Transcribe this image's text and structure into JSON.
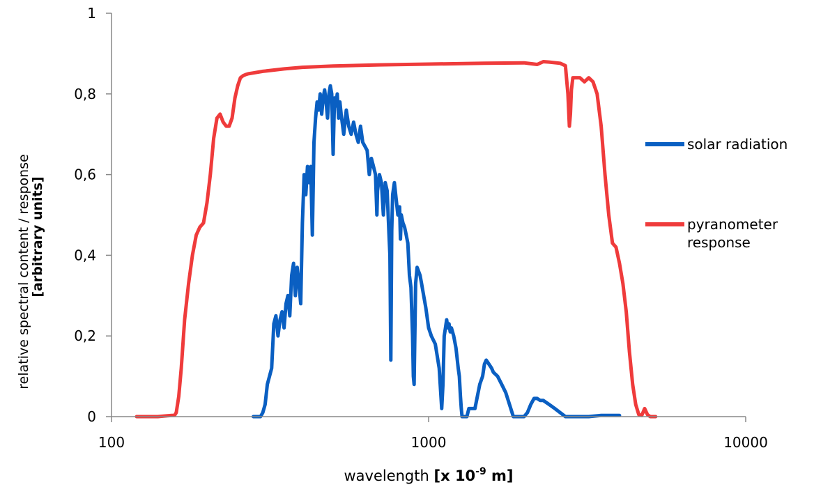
{
  "chart_data": {
    "type": "line",
    "x_scale": "log",
    "xlim": [
      100,
      10000
    ],
    "ylim": [
      0,
      1
    ],
    "grid": false,
    "legend_position": "right",
    "x_tick_labels": [
      "100",
      "1000",
      "10000"
    ],
    "x_tick_values": [
      100,
      1000,
      10000
    ],
    "y_tick_labels": [
      "0",
      "0,2",
      "0,4",
      "0,6",
      "0,8",
      "1"
    ],
    "y_tick_values": [
      0,
      0.2,
      0.4,
      0.6,
      0.8,
      1
    ],
    "xlabel": {
      "plain": "wavelength ",
      "bold_prefix": "[x 10",
      "bold_sup": "-9",
      "bold_suffix": " m]"
    },
    "ylabel": {
      "line1": "relative spectral content / response",
      "line2": "[arbitrary units]"
    },
    "series": [
      {
        "name": "solar radiation",
        "color": "#0A5FC2",
        "x": [
          280,
          295,
          300,
          305,
          310,
          315,
          320,
          325,
          330,
          335,
          340,
          345,
          350,
          355,
          360,
          365,
          370,
          375,
          380,
          385,
          390,
          395,
          400,
          405,
          410,
          415,
          420,
          425,
          430,
          435,
          440,
          445,
          450,
          455,
          460,
          465,
          470,
          475,
          480,
          485,
          490,
          495,
          500,
          505,
          510,
          515,
          520,
          525,
          530,
          540,
          550,
          560,
          570,
          580,
          590,
          600,
          610,
          620,
          630,
          640,
          650,
          660,
          670,
          680,
          687,
          690,
          700,
          710,
          720,
          730,
          740,
          750,
          755,
          760,
          765,
          770,
          780,
          790,
          800,
          810,
          815,
          820,
          830,
          840,
          850,
          860,
          870,
          880,
          890,
          895,
          900,
          910,
          920,
          930,
          940,
          950,
          960,
          980,
          1000,
          1020,
          1050,
          1080,
          1100,
          1110,
          1120,
          1130,
          1140,
          1150,
          1160,
          1170,
          1180,
          1200,
          1220,
          1240,
          1250,
          1260,
          1268,
          1275,
          1290,
          1300,
          1320,
          1340,
          1360,
          1380,
          1400,
          1450,
          1480,
          1500,
          1520,
          1550,
          1580,
          1600,
          1650,
          1700,
          1750,
          1800,
          1850,
          1900,
          2000,
          2050,
          2100,
          2150,
          2200,
          2250,
          2300,
          2400,
          2500,
          2600,
          2700,
          2800,
          3000,
          3200,
          3500,
          3800,
          4000
        ],
        "y": [
          0.0,
          0.0,
          0.01,
          0.03,
          0.08,
          0.1,
          0.12,
          0.23,
          0.25,
          0.2,
          0.24,
          0.26,
          0.22,
          0.28,
          0.3,
          0.25,
          0.35,
          0.38,
          0.3,
          0.37,
          0.33,
          0.28,
          0.48,
          0.6,
          0.55,
          0.62,
          0.58,
          0.62,
          0.45,
          0.68,
          0.74,
          0.78,
          0.76,
          0.8,
          0.75,
          0.79,
          0.81,
          0.78,
          0.74,
          0.8,
          0.82,
          0.8,
          0.65,
          0.79,
          0.77,
          0.8,
          0.74,
          0.78,
          0.75,
          0.7,
          0.76,
          0.72,
          0.7,
          0.73,
          0.7,
          0.68,
          0.72,
          0.68,
          0.67,
          0.66,
          0.6,
          0.64,
          0.62,
          0.6,
          0.5,
          0.56,
          0.6,
          0.58,
          0.5,
          0.58,
          0.56,
          0.45,
          0.4,
          0.14,
          0.46,
          0.55,
          0.58,
          0.54,
          0.5,
          0.52,
          0.44,
          0.5,
          0.48,
          0.47,
          0.45,
          0.43,
          0.35,
          0.32,
          0.2,
          0.1,
          0.08,
          0.33,
          0.37,
          0.36,
          0.35,
          0.33,
          0.31,
          0.27,
          0.22,
          0.2,
          0.18,
          0.12,
          0.02,
          0.08,
          0.2,
          0.22,
          0.24,
          0.22,
          0.23,
          0.21,
          0.22,
          0.2,
          0.17,
          0.12,
          0.1,
          0.05,
          0.02,
          0.0,
          0.0,
          0.0,
          0.0,
          0.02,
          0.02,
          0.02,
          0.02,
          0.08,
          0.1,
          0.13,
          0.14,
          0.13,
          0.12,
          0.11,
          0.1,
          0.08,
          0.06,
          0.03,
          0.0,
          0.0,
          0.0,
          0.01,
          0.03,
          0.045,
          0.045,
          0.04,
          0.04,
          0.03,
          0.02,
          0.01,
          0.0,
          0.0,
          0.0,
          0.0,
          0.003,
          0.003,
          0.003
        ]
      },
      {
        "name": "pyranometer response",
        "color": "#EF3B3B",
        "x": [
          120,
          140,
          150,
          155,
          158,
          160,
          163,
          166,
          170,
          175,
          180,
          185,
          190,
          195,
          200,
          205,
          210,
          215,
          220,
          225,
          230,
          235,
          240,
          245,
          250,
          255,
          260,
          265,
          270,
          280,
          300,
          350,
          400,
          500,
          700,
          1000,
          1500,
          2000,
          2200,
          2300,
          2400,
          2600,
          2700,
          2750,
          2780,
          2800,
          2820,
          2850,
          2900,
          3000,
          3100,
          3200,
          3300,
          3400,
          3500,
          3600,
          3700,
          3800,
          3850,
          3900,
          4000,
          4100,
          4200,
          4300,
          4400,
          4500,
          4600,
          4700,
          4800,
          4900,
          5000,
          5200
        ],
        "y": [
          0.0,
          0.0,
          0.002,
          0.003,
          0.003,
          0.01,
          0.05,
          0.12,
          0.24,
          0.33,
          0.4,
          0.45,
          0.47,
          0.48,
          0.53,
          0.6,
          0.69,
          0.74,
          0.75,
          0.73,
          0.72,
          0.72,
          0.74,
          0.79,
          0.82,
          0.84,
          0.845,
          0.848,
          0.85,
          0.852,
          0.856,
          0.862,
          0.866,
          0.869,
          0.872,
          0.874,
          0.876,
          0.877,
          0.873,
          0.88,
          0.879,
          0.876,
          0.87,
          0.8,
          0.72,
          0.75,
          0.81,
          0.84,
          0.84,
          0.84,
          0.83,
          0.84,
          0.83,
          0.8,
          0.72,
          0.6,
          0.5,
          0.43,
          0.425,
          0.42,
          0.38,
          0.33,
          0.26,
          0.16,
          0.08,
          0.03,
          0.005,
          0.003,
          0.02,
          0.005,
          0.0,
          0.0
        ]
      }
    ]
  }
}
